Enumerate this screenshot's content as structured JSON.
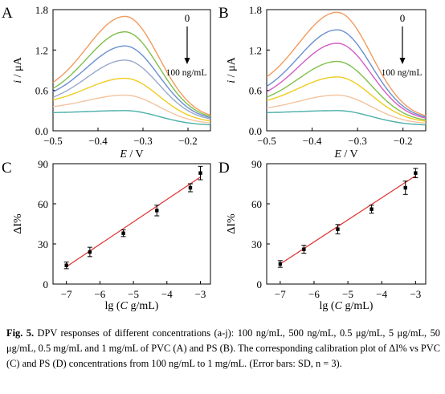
{
  "colors": {
    "fit_line": "#e03030",
    "frame": "#000000"
  },
  "chart_data": [
    {
      "panel": "A",
      "type": "line",
      "xlabel": "E / V",
      "ylabel": "i / μA",
      "xlim": [
        -0.5,
        -0.15
      ],
      "ylim": [
        0,
        1.8
      ],
      "xticks": [
        "-0.5",
        "-0.4",
        "-0.3",
        "-0.2"
      ],
      "yticks": [
        "0.0",
        "0.6",
        "1.2",
        "1.8"
      ],
      "annotations": {
        "top": "0",
        "bottom": "100 ng/mL"
      },
      "peak_x": -0.34,
      "series": [
        {
          "color": "#f39a5c",
          "peak": 1.7,
          "start": 0.72,
          "end": 0.17
        },
        {
          "color": "#7fbf4a",
          "peak": 1.47,
          "start": 0.63,
          "end": 0.16
        },
        {
          "color": "#6a8fd0",
          "peak": 1.26,
          "start": 0.58,
          "end": 0.15
        },
        {
          "color": "#9aa8cc",
          "peak": 1.05,
          "start": 0.5,
          "end": 0.14
        },
        {
          "color": "#f0cc20",
          "peak": 0.78,
          "start": 0.46,
          "end": 0.12
        },
        {
          "color": "#f2c4a0",
          "peak": 0.53,
          "start": 0.36,
          "end": 0.1
        },
        {
          "color": "#4aafa8",
          "peak": 0.3,
          "start": 0.27,
          "end": 0.08
        }
      ]
    },
    {
      "panel": "B",
      "type": "line",
      "xlabel": "E / V",
      "ylabel": "i / μA",
      "xlim": [
        -0.5,
        -0.15
      ],
      "ylim": [
        0,
        1.8
      ],
      "xticks": [
        "-0.5",
        "-0.4",
        "-0.3",
        "-0.2"
      ],
      "yticks": [
        "0.0",
        "0.6",
        "1.2",
        "1.8"
      ],
      "annotations": {
        "top": "0",
        "bottom": "100 ng/mL"
      },
      "peak_x": -0.345,
      "series": [
        {
          "color": "#f39a5c",
          "peak": 1.76,
          "start": 0.8,
          "end": 0.17
        },
        {
          "color": "#6a8fd0",
          "peak": 1.5,
          "start": 0.66,
          "end": 0.16
        },
        {
          "color": "#d45cc4",
          "peak": 1.3,
          "start": 0.58,
          "end": 0.15
        },
        {
          "color": "#7fbf4a",
          "peak": 1.03,
          "start": 0.5,
          "end": 0.13
        },
        {
          "color": "#f0cc20",
          "peak": 0.8,
          "start": 0.45,
          "end": 0.12
        },
        {
          "color": "#f2c4a0",
          "peak": 0.53,
          "start": 0.34,
          "end": 0.1
        },
        {
          "color": "#4aafa8",
          "peak": 0.3,
          "start": 0.27,
          "end": 0.08
        }
      ]
    },
    {
      "panel": "C",
      "type": "scatter",
      "xlabel": "lg (C g/mL)",
      "ylabel": "ΔI%",
      "xlim": [
        -7.4,
        -2.7
      ],
      "ylim": [
        0,
        90
      ],
      "xticks": [
        "-7",
        "-6",
        "-5",
        "-4",
        "-3"
      ],
      "yticks": [
        "0",
        "30",
        "60",
        "90"
      ],
      "points": [
        {
          "x": -7,
          "y": 14,
          "err": 2.5
        },
        {
          "x": -6.3,
          "y": 24,
          "err": 3.5
        },
        {
          "x": -5.3,
          "y": 38,
          "err": 2.5
        },
        {
          "x": -4.3,
          "y": 55,
          "err": 4
        },
        {
          "x": -3.3,
          "y": 72,
          "err": 3
        },
        {
          "x": -3,
          "y": 83,
          "err": 5
        }
      ],
      "fit": {
        "x1": -7,
        "y1": 13,
        "x2": -3,
        "y2": 80
      }
    },
    {
      "panel": "D",
      "type": "scatter",
      "xlabel": "lg (C g/mL)",
      "ylabel": "ΔI%",
      "xlim": [
        -7.4,
        -2.7
      ],
      "ylim": [
        0,
        90
      ],
      "xticks": [
        "-7",
        "-6",
        "-5",
        "-4",
        "-3"
      ],
      "yticks": [
        "0",
        "30",
        "60",
        "90"
      ],
      "points": [
        {
          "x": -7,
          "y": 15,
          "err": 2.5
        },
        {
          "x": -6.3,
          "y": 26,
          "err": 3
        },
        {
          "x": -5.3,
          "y": 41,
          "err": 3.5
        },
        {
          "x": -4.3,
          "y": 56,
          "err": 3
        },
        {
          "x": -3.3,
          "y": 72,
          "err": 5
        },
        {
          "x": -3,
          "y": 83,
          "err": 3.5
        }
      ],
      "fit": {
        "x1": -7,
        "y1": 15,
        "x2": -3,
        "y2": 81
      }
    }
  ],
  "caption": {
    "label": "Fig. 5.",
    "text": " DPV responses of different concentrations (a-j): 100 ng/mL, 500 ng/mL, 0.5 μg/mL, 5 μg/mL, 50 μg/mL, 0.5 mg/mL and 1 mg/mL of PVC (A) and PS (B). The corresponding calibration plot of ΔI% vs PVC (C) and PS (D) concentrations from 100 ng/mL to 1 mg/mL. (Error bars: SD, n = 3)."
  }
}
